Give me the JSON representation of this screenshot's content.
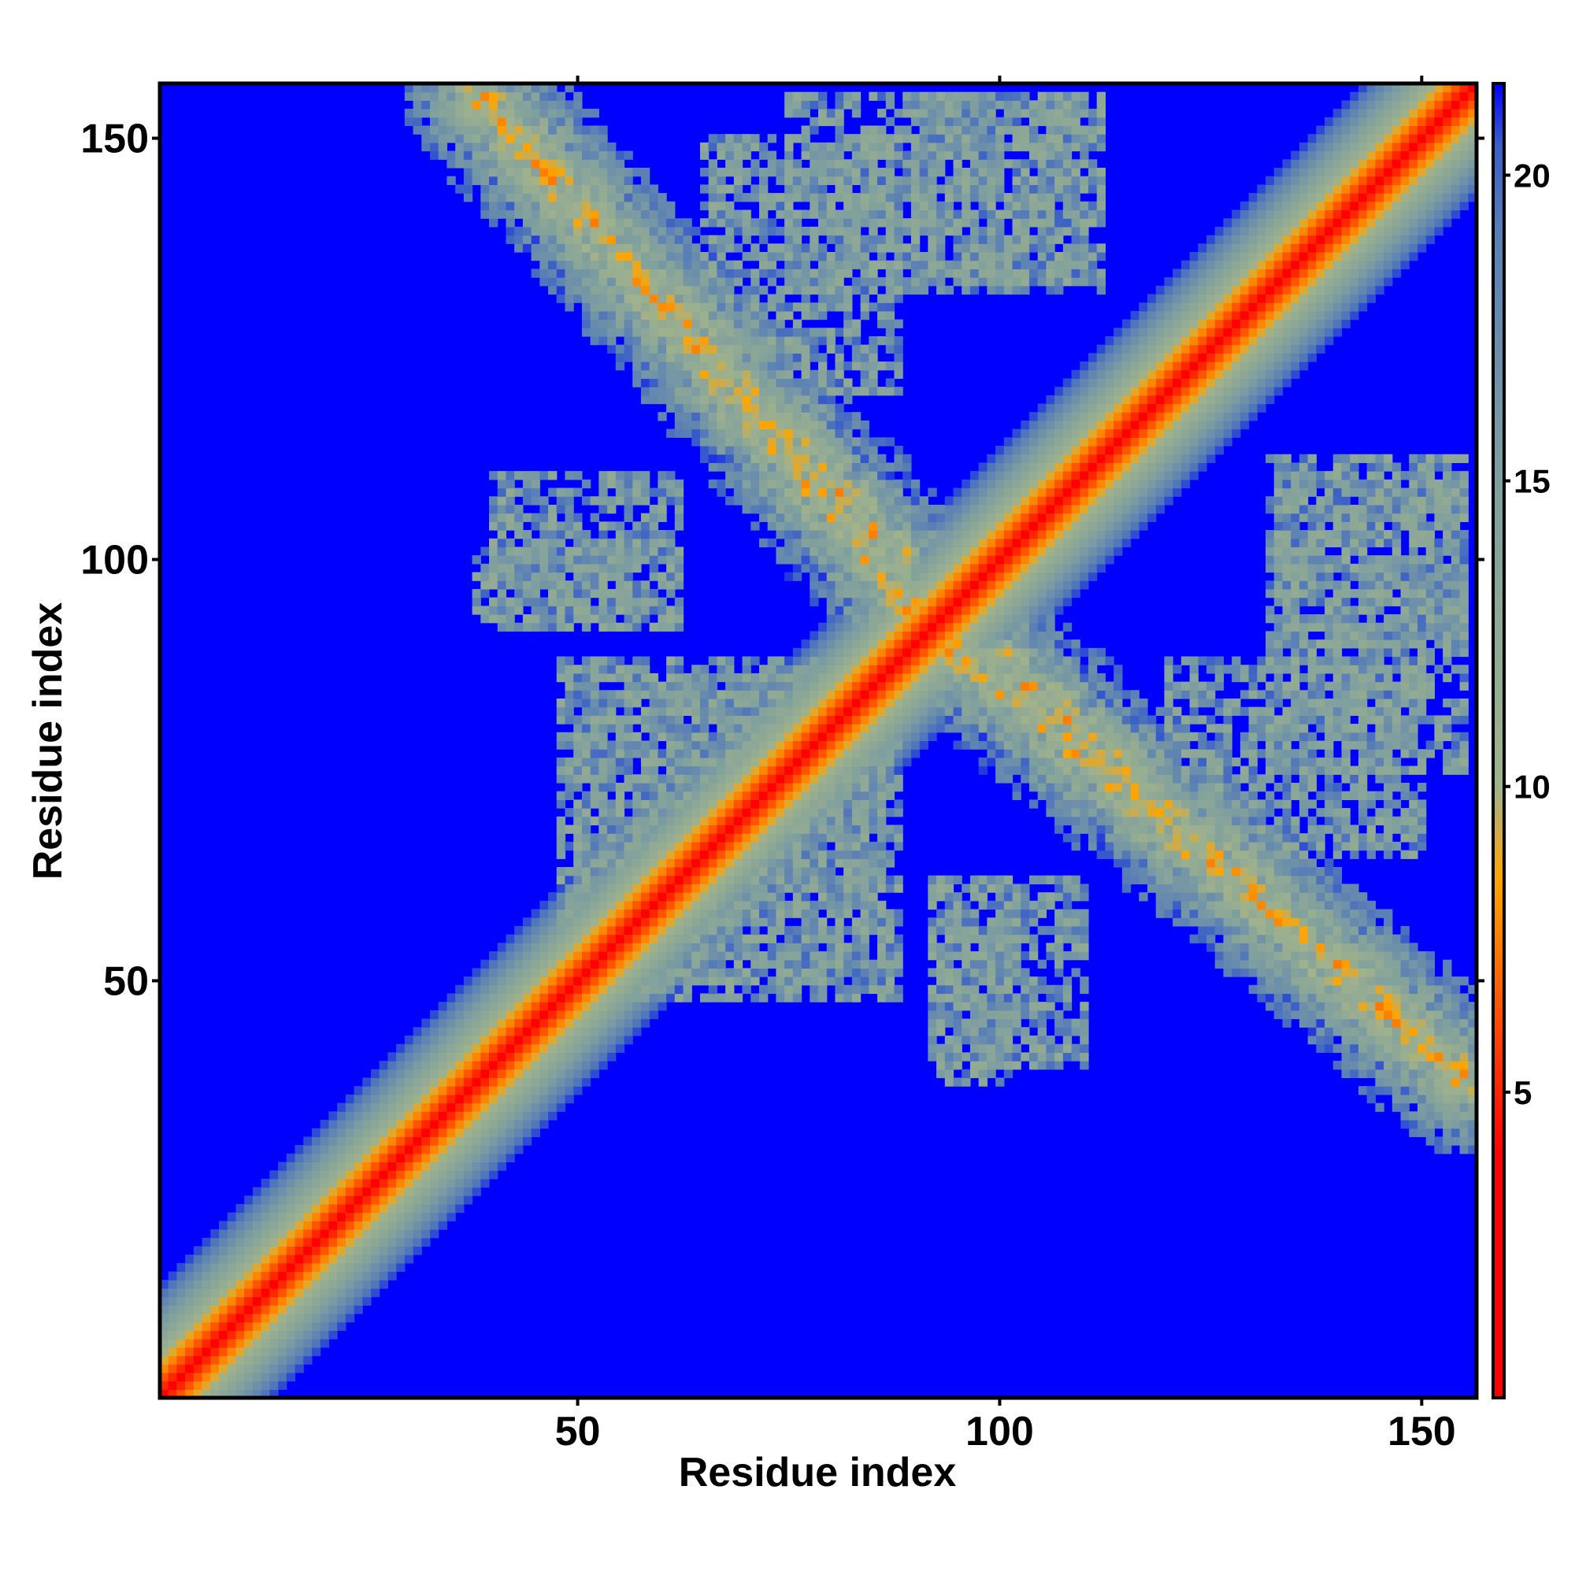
{
  "chart_data": {
    "type": "heatmap",
    "title": "",
    "xlabel": "Residue index",
    "ylabel": "Residue index",
    "x_range": [
      1,
      156
    ],
    "y_range": [
      1,
      156
    ],
    "x_ticks": [
      50,
      100,
      150
    ],
    "y_ticks": [
      50,
      100,
      150
    ],
    "colorbar": {
      "ticks": [
        5,
        10,
        15,
        20
      ],
      "range": [
        0,
        21.5
      ],
      "stops": [
        {
          "value": 0,
          "color": "#ff0000"
        },
        {
          "value": 4,
          "color": "#ff0000"
        },
        {
          "value": 6,
          "color": "#ff4500"
        },
        {
          "value": 8.5,
          "color": "#ffa500"
        },
        {
          "value": 10,
          "color": "#a0b28c"
        },
        {
          "value": 15,
          "color": "#7f9f9f"
        },
        {
          "value": 19,
          "color": "#5a7fb5"
        },
        {
          "value": 20.5,
          "color": "#3a5fc8"
        },
        {
          "value": 21.5,
          "color": "#0000ff"
        }
      ]
    },
    "background_color": "#0000ff",
    "features": {
      "main_diagonal": {
        "from": [
          1,
          1
        ],
        "to": [
          156,
          156
        ],
        "description": "residue i with itself, minimum distance"
      },
      "anti_diagonal_contacts": [
        {
          "x": [
            38,
            88
          ],
          "y": [
            155,
            100
          ]
        },
        {
          "x": [
            88,
            156
          ],
          "y": [
            95,
            38
          ]
        }
      ],
      "contact_patches": [
        {
          "x": [
            38,
            56
          ],
          "y": [
            93,
            101
          ]
        },
        {
          "x": [
            48,
            86
          ],
          "y": [
            50,
            88
          ]
        },
        {
          "x": [
            92,
            110
          ],
          "y": [
            40,
            62
          ]
        },
        {
          "x": [
            75,
            112
          ],
          "y": [
            132,
            155
          ]
        },
        {
          "x": [
            133,
            155
          ],
          "y": [
            90,
            110
          ]
        },
        {
          "x": [
            120,
            150
          ],
          "y": [
            65,
            88
          ]
        }
      ]
    }
  }
}
